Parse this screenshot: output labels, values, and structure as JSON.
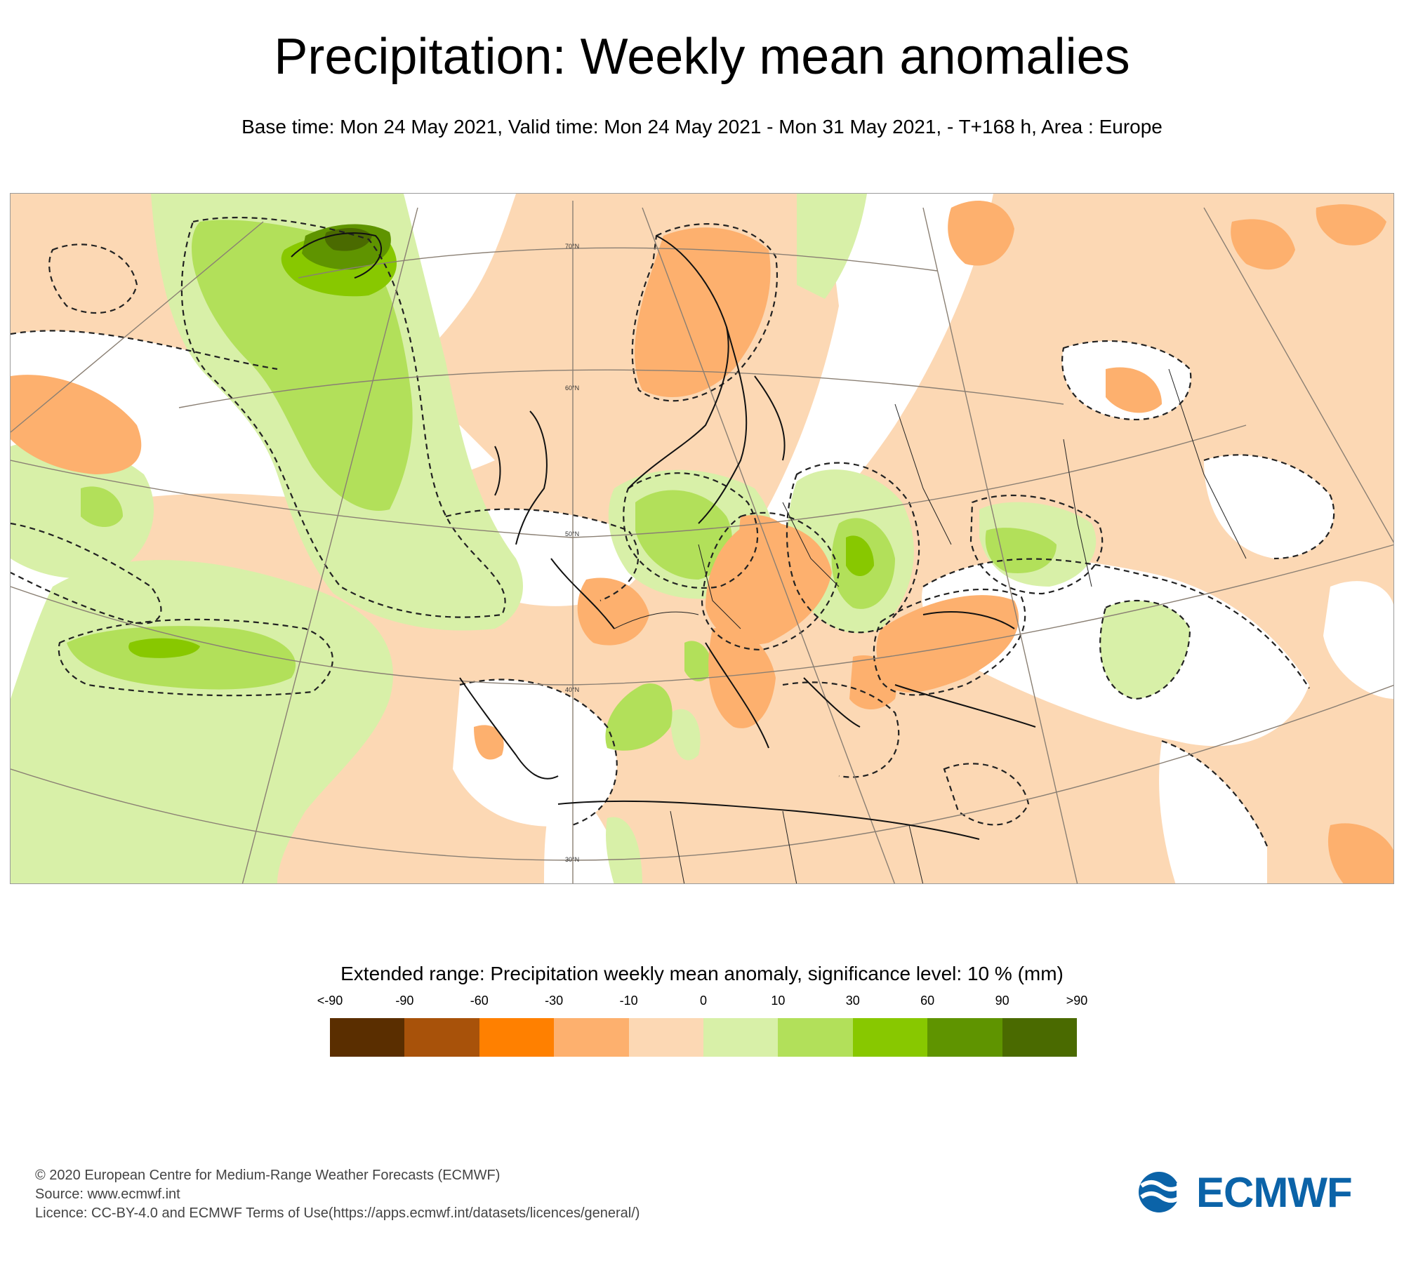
{
  "header": {
    "title": "Precipitation: Weekly mean anomalies",
    "subtitle": "Base time: Mon 24 May 2021, Valid time: Mon 24 May 2021 - Mon 31 May 2021, - T+168 h, Area : Europe"
  },
  "map": {
    "area": "Europe",
    "latitude_labels": [
      "70°N",
      "60°N",
      "50°N",
      "40°N",
      "30°N"
    ]
  },
  "legend": {
    "title": "Extended range: Precipitation weekly mean anomaly, significance level: 10 % (mm)",
    "ticks": [
      "<-90",
      "-90",
      "-60",
      "-30",
      "-10",
      "0",
      "10",
      "30",
      "60",
      "90",
      ">90"
    ],
    "colors": [
      "#5a2e00",
      "#a8520a",
      "#ff8000",
      "#fdb06e",
      "#fcd8b4",
      "#d8f0a8",
      "#b2e05a",
      "#88c800",
      "#5f9400",
      "#4a6a00"
    ]
  },
  "footer": {
    "line1": "© 2020 European Centre for Medium-Range Weather Forecasts (ECMWF)",
    "line2": "Source: www.ecmwf.int",
    "line3": "Licence: CC-BY-4.0 and ECMWF Terms of Use(https://apps.ecmwf.int/datasets/licences/general/)"
  },
  "logo": {
    "text": "ECMWF",
    "color": "#0b63a8"
  }
}
